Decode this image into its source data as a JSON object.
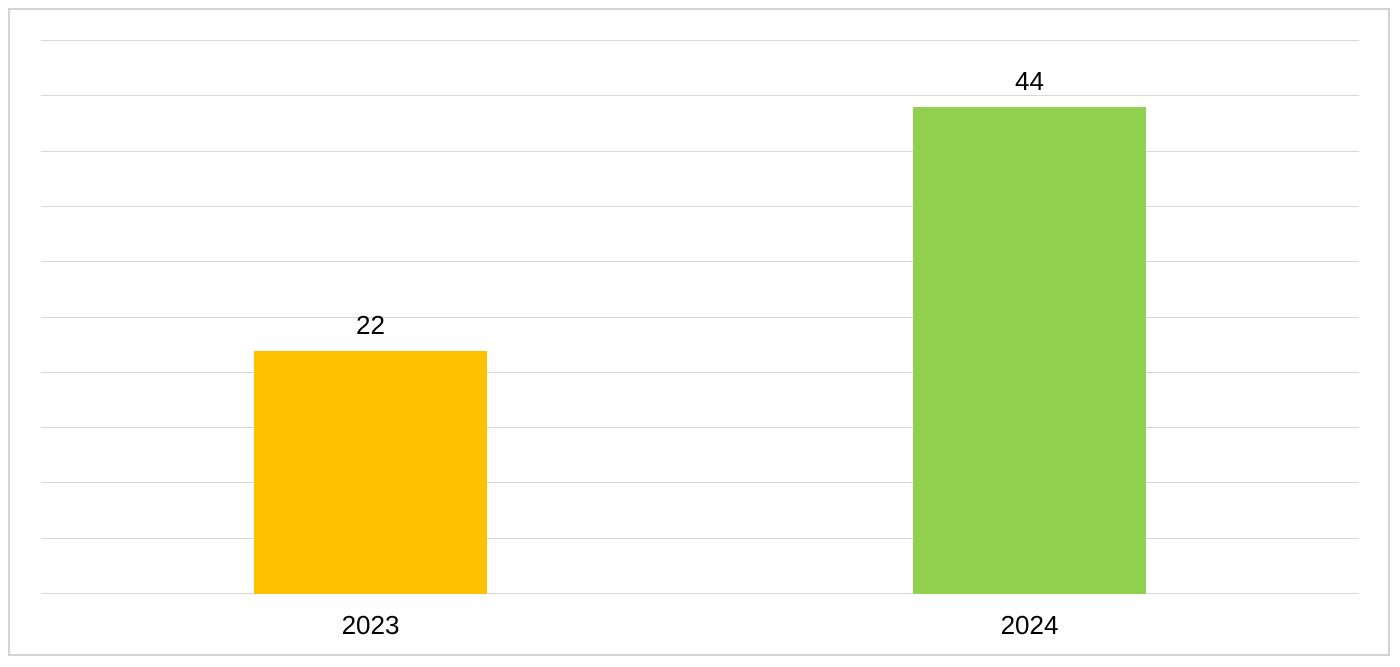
{
  "chart_data": {
    "type": "bar",
    "categories": [
      "2023",
      "2024"
    ],
    "values": [
      22,
      44
    ],
    "data_labels": [
      "22",
      "44"
    ],
    "bar_colors": [
      "#FFC000",
      "#92D050"
    ],
    "ylim": [
      0,
      50
    ],
    "gridline_step": 5,
    "grid": true,
    "legend": false,
    "data_label_position": "outside-end",
    "gridline_color": "#D7D7D7",
    "frame_border_color": "#D3D3D3",
    "text_color": "#000000",
    "background_color": "#FFFFFF"
  }
}
